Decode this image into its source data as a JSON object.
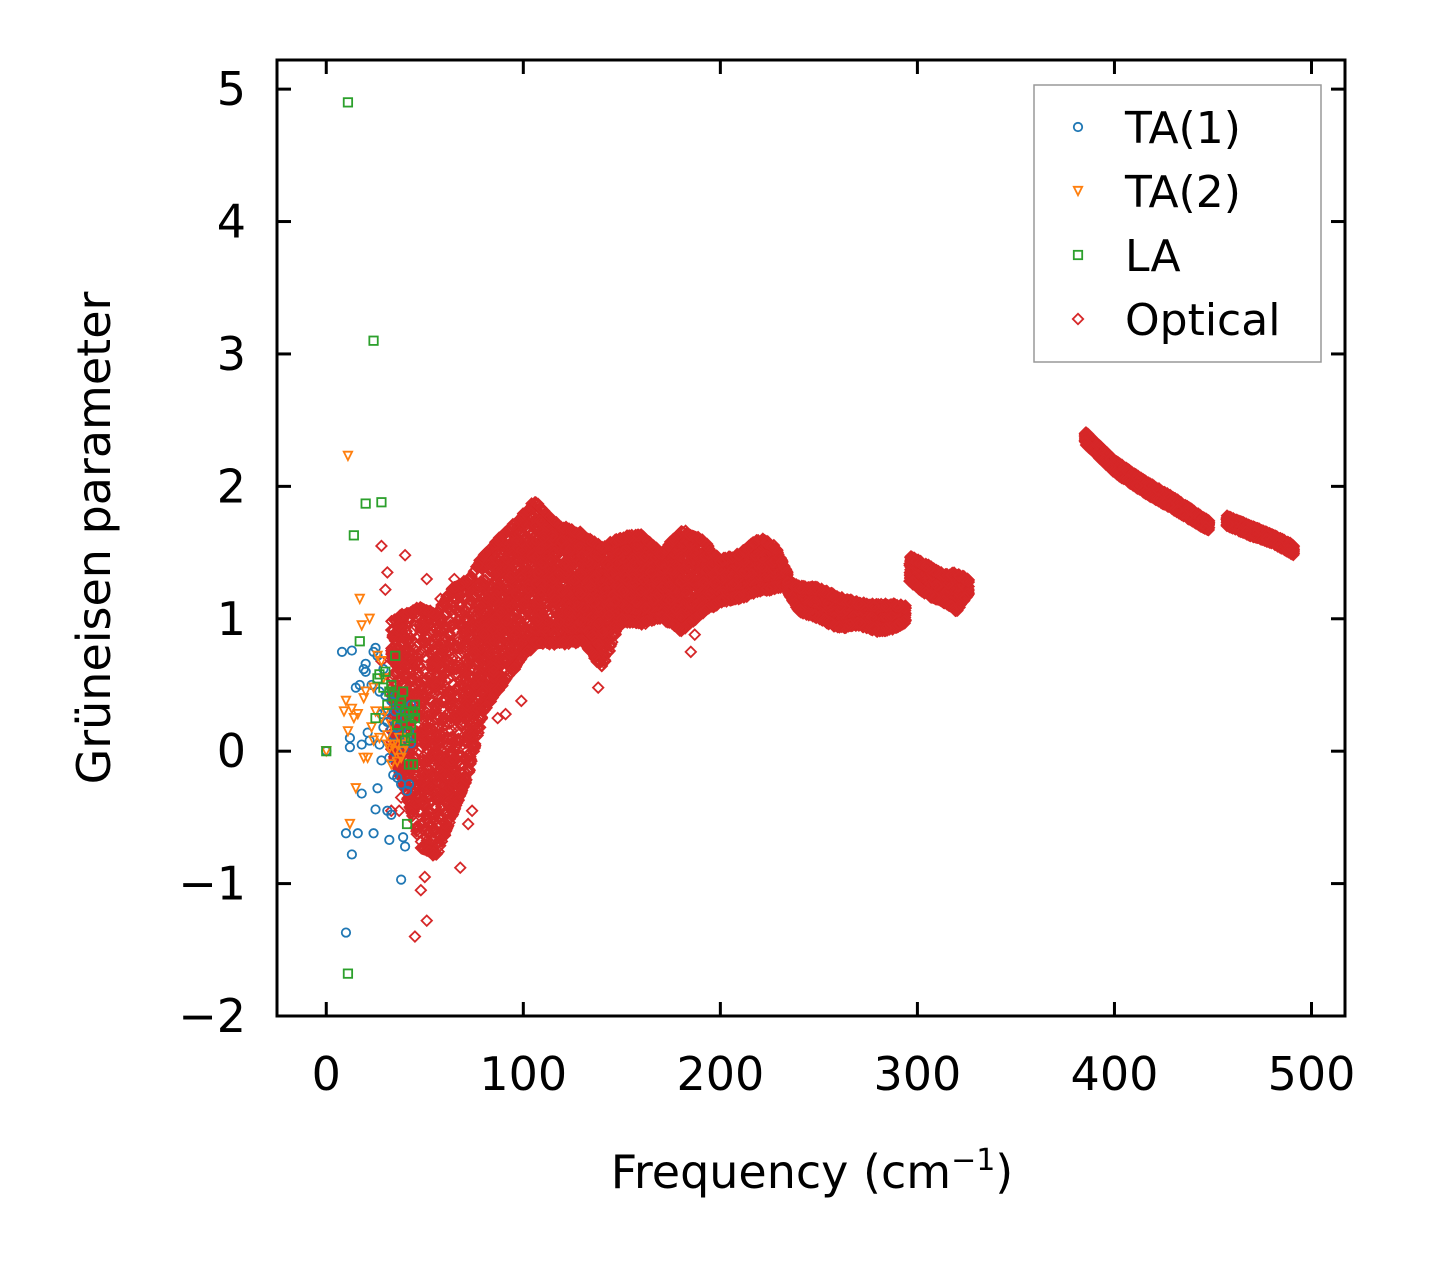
{
  "chart_data": {
    "type": "scatter",
    "xlabel": "Frequency (cm",
    "xlabel_exponent": "−1",
    "xlabel_close": ")",
    "ylabel": "Grüneisen parameter",
    "xlim": [
      -25,
      517
    ],
    "ylim": [
      -2,
      5.22
    ],
    "x_ticks": [
      0,
      100,
      200,
      300,
      400,
      500
    ],
    "y_ticks": [
      -2,
      -1,
      0,
      1,
      2,
      3,
      4,
      5
    ],
    "x_tick_labels": [
      "0",
      "100",
      "200",
      "300",
      "400",
      "500"
    ],
    "y_tick_labels": [
      "−2",
      "−1",
      "0",
      "1",
      "2",
      "3",
      "4",
      "5"
    ],
    "grid": false,
    "legend_position": "top-right",
    "series": [
      {
        "name": "TA(1)",
        "marker": "circle",
        "color": "#1f77b4",
        "points": [
          [
            0,
            0
          ],
          [
            8,
            0.75
          ],
          [
            10,
            -0.62
          ],
          [
            10,
            -1.37
          ],
          [
            12,
            0.03
          ],
          [
            12,
            0.1
          ],
          [
            13,
            0.76
          ],
          [
            13,
            -0.78
          ],
          [
            15,
            0.48
          ],
          [
            16,
            -0.62
          ],
          [
            17,
            0.5
          ],
          [
            18,
            0.05
          ],
          [
            18,
            -0.32
          ],
          [
            19,
            0.62
          ],
          [
            20,
            0.66
          ],
          [
            20,
            0.6
          ],
          [
            21,
            0.14
          ],
          [
            22,
            0.08
          ],
          [
            23,
            0.5
          ],
          [
            24,
            0.75
          ],
          [
            24,
            -0.62
          ],
          [
            25,
            -0.44
          ],
          [
            25,
            0.78
          ],
          [
            26,
            0.72
          ],
          [
            26,
            -0.28
          ],
          [
            27,
            0.05
          ],
          [
            27,
            0.45
          ],
          [
            28,
            -0.07
          ],
          [
            28,
            0.28
          ],
          [
            29,
            0.18
          ],
          [
            29,
            0.62
          ],
          [
            30,
            0.42
          ],
          [
            30,
            0.3
          ],
          [
            31,
            -0.45
          ],
          [
            31,
            0.22
          ],
          [
            32,
            -0.67
          ],
          [
            32,
            -0.05
          ],
          [
            33,
            0.38
          ],
          [
            33,
            -0.48
          ],
          [
            34,
            -0.18
          ],
          [
            34,
            0.12
          ],
          [
            35,
            0.42
          ],
          [
            35,
            0.3
          ],
          [
            36,
            -0.2
          ],
          [
            36,
            0.18
          ],
          [
            37,
            0.05
          ],
          [
            37,
            0.32
          ],
          [
            38,
            -0.25
          ],
          [
            38,
            -0.97
          ],
          [
            39,
            0.02
          ],
          [
            39,
            -0.65
          ],
          [
            40,
            -0.72
          ],
          [
            40,
            0.25
          ],
          [
            41,
            -0.3
          ],
          [
            41,
            0.1
          ],
          [
            42,
            -0.25
          ],
          [
            42,
            0.15
          ],
          [
            43,
            0.35
          ],
          [
            43,
            0.06
          ]
        ]
      },
      {
        "name": "TA(2)",
        "marker": "triangle-down",
        "color": "#ff7f0e",
        "points": [
          [
            0,
            0
          ],
          [
            9,
            0.3
          ],
          [
            10,
            0.38
          ],
          [
            11,
            2.23
          ],
          [
            11,
            0.15
          ],
          [
            12,
            -0.55
          ],
          [
            13,
            0.32
          ],
          [
            14,
            0.25
          ],
          [
            15,
            -0.28
          ],
          [
            16,
            0.28
          ],
          [
            17,
            1.15
          ],
          [
            18,
            0.95
          ],
          [
            19,
            0.4
          ],
          [
            19,
            -0.05
          ],
          [
            20,
            0.45
          ],
          [
            21,
            -0.05
          ],
          [
            22,
            1.0
          ],
          [
            23,
            0.18
          ],
          [
            24,
            0.08
          ],
          [
            24,
            0.48
          ],
          [
            25,
            0.3
          ],
          [
            26,
            0.72
          ],
          [
            27,
            0.1
          ],
          [
            28,
            0.68
          ],
          [
            28,
            0.25
          ],
          [
            29,
            0.55
          ],
          [
            30,
            0.3
          ],
          [
            31,
            0.12
          ],
          [
            31,
            0.05
          ],
          [
            32,
            0.02
          ],
          [
            33,
            -0.1
          ],
          [
            33,
            0.2
          ],
          [
            34,
            0.05
          ],
          [
            35,
            0.0
          ],
          [
            36,
            -0.08
          ],
          [
            36,
            0.05
          ],
          [
            37,
            0.1
          ],
          [
            38,
            -0.05
          ],
          [
            39,
            0.0
          ],
          [
            40,
            0.05
          ],
          [
            41,
            0.1
          ]
        ]
      },
      {
        "name": "LA",
        "marker": "square",
        "color": "#2ca02c",
        "points": [
          [
            0,
            0
          ],
          [
            11,
            4.9
          ],
          [
            11,
            -1.68
          ],
          [
            14,
            1.63
          ],
          [
            17,
            0.83
          ],
          [
            20,
            1.87
          ],
          [
            24,
            3.1
          ],
          [
            25,
            0.25
          ],
          [
            26,
            0.55
          ],
          [
            27,
            0.58
          ],
          [
            28,
            1.88
          ],
          [
            29,
            0.48
          ],
          [
            30,
            0.6
          ],
          [
            31,
            0.35
          ],
          [
            32,
            0.45
          ],
          [
            33,
            0.5
          ],
          [
            34,
            0.42
          ],
          [
            35,
            0.72
          ],
          [
            36,
            0.2
          ],
          [
            37,
            0.35
          ],
          [
            38,
            0.25
          ],
          [
            38,
            0.38
          ],
          [
            39,
            0.45
          ],
          [
            40,
            0.3
          ],
          [
            40,
            0.08
          ],
          [
            41,
            0.15
          ],
          [
            41,
            -0.55
          ],
          [
            42,
            -0.1
          ],
          [
            42,
            0.28
          ],
          [
            43,
            0.1
          ],
          [
            43,
            0.2
          ],
          [
            44,
            -0.1
          ],
          [
            44,
            0.3
          ],
          [
            45,
            0.35
          ],
          [
            45,
            0.25
          ]
        ]
      },
      {
        "name": "Optical",
        "marker": "diamond",
        "color": "#d62728",
        "points": [
          [
            28,
            1.55
          ],
          [
            28,
            0.68
          ],
          [
            31,
            1.35
          ],
          [
            30,
            1.22
          ],
          [
            40,
            1.48
          ],
          [
            51,
            1.3
          ],
          [
            68,
            -0.88
          ],
          [
            45,
            -1.4
          ],
          [
            51,
            -1.28
          ],
          [
            48,
            -1.05
          ],
          [
            60,
            -0.55
          ],
          [
            72,
            -0.55
          ],
          [
            74,
            -0.45
          ],
          [
            50,
            -0.95
          ],
          [
            33,
            -0.45
          ],
          [
            37,
            -0.45
          ],
          [
            87,
            0.25
          ],
          [
            91,
            0.28
          ],
          [
            99,
            0.38
          ],
          [
            138,
            0.48
          ],
          [
            185,
            0.75
          ],
          [
            187,
            0.88
          ],
          [
            38,
            -0.35
          ],
          [
            42,
            -0.15
          ],
          [
            36,
            0.05
          ],
          [
            40,
            0.75
          ],
          [
            45,
            0.95
          ],
          [
            58,
            1.15
          ],
          [
            65,
            1.3
          ]
        ],
        "bands": [
          {
            "x": [
              33,
              40,
              48,
              56,
              64,
              72,
              80,
              90,
              100,
              106
            ],
            "lower": [
              0.0,
              -0.3,
              -0.75,
              -0.8,
              -0.5,
              -0.2,
              0.3,
              0.5,
              0.7,
              0.8
            ],
            "upper": [
              1.0,
              1.05,
              1.1,
              1.05,
              1.25,
              1.3,
              1.5,
              1.65,
              1.8,
              1.9
            ]
          },
          {
            "x": [
              106,
              118,
              130,
              140,
              150,
              160,
              170,
              180,
              190,
              200,
              210,
              220,
              228,
              234
            ],
            "lower": [
              0.8,
              0.8,
              0.82,
              0.62,
              0.98,
              0.95,
              1.0,
              0.9,
              1.02,
              1.12,
              1.15,
              1.2,
              1.22,
              1.25
            ],
            "upper": [
              1.9,
              1.72,
              1.65,
              1.55,
              1.62,
              1.65,
              1.5,
              1.68,
              1.62,
              1.45,
              1.5,
              1.62,
              1.55,
              1.35
            ]
          },
          {
            "x": [
              234,
              240,
              250,
              260,
              270,
              280,
              288,
              294
            ],
            "lower": [
              1.2,
              1.05,
              1.0,
              0.92,
              0.95,
              0.9,
              0.92,
              0.97
            ],
            "upper": [
              1.3,
              1.25,
              1.24,
              1.17,
              1.13,
              1.11,
              1.12,
              1.1
            ]
          },
          {
            "x": [
              296,
              304,
              312,
              320,
              326
            ],
            "lower": [
              1.28,
              1.18,
              1.13,
              1.05,
              1.18
            ],
            "upper": [
              1.48,
              1.42,
              1.35,
              1.35,
              1.3
            ]
          },
          {
            "x": [
              385,
              400,
              415,
              430,
              448
            ],
            "lower": [
              2.32,
              2.1,
              1.95,
              1.82,
              1.66
            ],
            "upper": [
              2.42,
              2.2,
              2.05,
              1.92,
              1.74
            ]
          },
          {
            "x": [
              457,
              470,
              480,
              491
            ],
            "lower": [
              1.7,
              1.62,
              1.57,
              1.48
            ],
            "upper": [
              1.78,
              1.7,
              1.64,
              1.56
            ]
          }
        ]
      }
    ]
  }
}
